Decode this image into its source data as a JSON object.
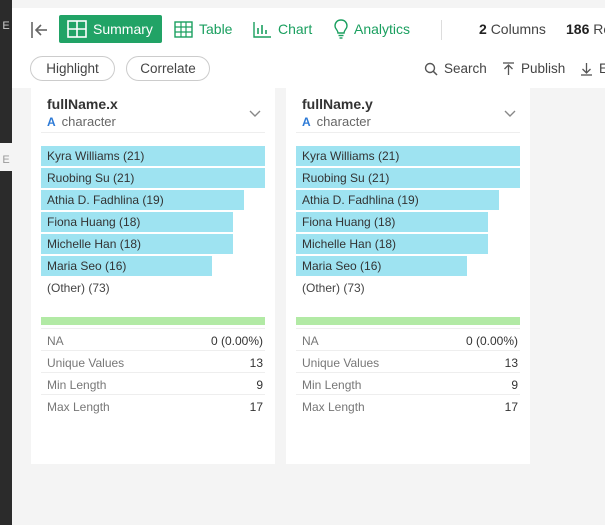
{
  "topbar": {
    "tabs": [
      {
        "label": "Summary",
        "icon": "grid-icon",
        "active": true
      },
      {
        "label": "Table",
        "icon": "table-icon",
        "active": false
      },
      {
        "label": "Chart",
        "icon": "bar-chart-icon",
        "active": false
      },
      {
        "label": "Analytics",
        "icon": "lightbulb-icon",
        "active": false
      }
    ],
    "columns_value": "2",
    "columns_label": "Columns",
    "rows_value": "186",
    "rows_label": "Ro"
  },
  "actionbar": {
    "highlight_label": "Highlight",
    "correlate_label": "Correlate",
    "search_label": "Search",
    "publish_label": "Publish",
    "export_label": "E"
  },
  "columns": [
    {
      "name": "fullName.x",
      "type": "character",
      "type_glyph": "A",
      "frequencies": [
        {
          "label": "Kyra Williams (21)",
          "count": 21
        },
        {
          "label": "Ruobing Su (21)",
          "count": 21
        },
        {
          "label": "Athia D. Fadhlina (19)",
          "count": 19
        },
        {
          "label": "Fiona Huang (18)",
          "count": 18
        },
        {
          "label": "Michelle Han (18)",
          "count": 18
        },
        {
          "label": "Maria Seo (16)",
          "count": 16
        }
      ],
      "other_label": "(Other) (73)",
      "stats": [
        {
          "key": "NA",
          "value": "0 (0.00%)"
        },
        {
          "key": "Unique Values",
          "value": "13"
        },
        {
          "key": "Min Length",
          "value": "9"
        },
        {
          "key": "Max Length",
          "value": "17"
        }
      ]
    },
    {
      "name": "fullName.y",
      "type": "character",
      "type_glyph": "A",
      "frequencies": [
        {
          "label": "Kyra Williams (21)",
          "count": 21
        },
        {
          "label": "Ruobing Su (21)",
          "count": 21
        },
        {
          "label": "Athia D. Fadhlina (19)",
          "count": 19
        },
        {
          "label": "Fiona Huang (18)",
          "count": 18
        },
        {
          "label": "Michelle Han (18)",
          "count": 18
        },
        {
          "label": "Maria Seo (16)",
          "count": 16
        }
      ],
      "other_label": "(Other) (73)",
      "stats": [
        {
          "key": "NA",
          "value": "0 (0.00%)"
        },
        {
          "key": "Unique Values",
          "value": "13"
        },
        {
          "key": "Min Length",
          "value": "9"
        },
        {
          "key": "Max Length",
          "value": "17"
        }
      ]
    }
  ],
  "colors": {
    "accent": "#21a366",
    "bar": "#9ee3f1",
    "valid_bar": "#b2eaa5",
    "type_icon": "#2d7ad6"
  },
  "sidebar_marks": [
    "E",
    "E"
  ]
}
